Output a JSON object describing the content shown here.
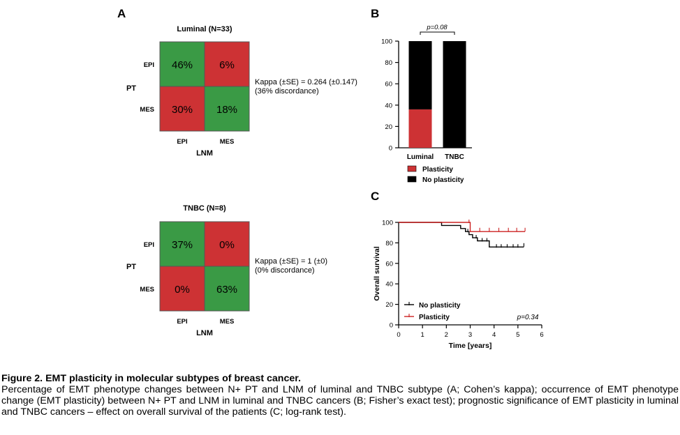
{
  "panel_a": {
    "label": "A",
    "luminal": {
      "title": "Luminal (N=33)",
      "cells": [
        {
          "text": "46%",
          "status": "concordant"
        },
        {
          "text": "6%",
          "status": "discordant"
        },
        {
          "text": "30%",
          "status": "discordant"
        },
        {
          "text": "18%",
          "status": "concordant"
        }
      ],
      "kappa_line1": "Kappa (±SE) = 0.264 (±0.147)",
      "kappa_line2": "(36% discordance)"
    },
    "tnbc": {
      "title": "TNBC (N=8)",
      "cells": [
        {
          "text": "37%",
          "status": "concordant"
        },
        {
          "text": "0%",
          "status": "discordant"
        },
        {
          "text": "0%",
          "status": "discordant"
        },
        {
          "text": "63%",
          "status": "concordant"
        }
      ],
      "kappa_line1": "Kappa (±SE) = 1 (±0)",
      "kappa_line2": "(0% discordance)"
    },
    "row_labels": [
      "EPI",
      "MES"
    ],
    "col_labels": [
      "EPI",
      "MES"
    ],
    "row_axis": "PT",
    "col_axis": "LNM"
  },
  "panel_b": {
    "label": "B",
    "p_value": "p=0.08"
  },
  "panel_c": {
    "label": "C",
    "p_value": "p=0.34"
  },
  "colors": {
    "concordant": "#3a9a45",
    "discordant": "#cd3234",
    "plasticity": "#cd3234",
    "no_plasticity": "#000000",
    "km_plasticity": "#cc2222",
    "km_no_plasticity": "#000000"
  },
  "caption": {
    "title": "Figure 2. EMT plasticity in molecular subtypes of breast cancer.",
    "body": "Percentage of EMT phenotype changes between N+ PT and LNM of luminal and TNBC subtype (A; Cohen’s kappa); occurrence of EMT phenotype change (EMT plasticity) between N+ PT and LNM in luminal and TNBC cancers (B; Fisher’s exact test); prognostic significance of EMT plasticity in luminal and TNBC cancers – effect on overall survival of the patients (C; log-rank test)."
  },
  "chart_data": [
    {
      "type": "heatmap",
      "title": "Luminal (N=33)",
      "rows": [
        "EPI",
        "MES"
      ],
      "columns": [
        "EPI",
        "MES"
      ],
      "values": [
        [
          46,
          6
        ],
        [
          30,
          18
        ]
      ],
      "unit": "%",
      "ylabel": "PT",
      "xlabel": "LNM"
    },
    {
      "type": "heatmap",
      "title": "TNBC (N=8)",
      "rows": [
        "EPI",
        "MES"
      ],
      "columns": [
        "EPI",
        "MES"
      ],
      "values": [
        [
          37,
          0
        ],
        [
          0,
          63
        ]
      ],
      "unit": "%",
      "ylabel": "PT",
      "xlabel": "LNM"
    },
    {
      "type": "bar",
      "stacked": true,
      "categories": [
        "Luminal",
        "TNBC"
      ],
      "series": [
        {
          "name": "Plasticity",
          "values": [
            36,
            0
          ]
        },
        {
          "name": "No plasticity",
          "values": [
            64,
            100
          ]
        }
      ],
      "ylim": [
        0,
        100
      ],
      "yticks": [
        0,
        20,
        40,
        60,
        80,
        100
      ],
      "annotation": "p=0.08",
      "legend_position": "bottom"
    },
    {
      "type": "line",
      "step": true,
      "xlabel": "Time [years]",
      "ylabel": "Overall survival",
      "xlim": [
        0,
        6
      ],
      "ylim": [
        0,
        100
      ],
      "xticks": [
        0,
        1,
        2,
        3,
        4,
        5,
        6
      ],
      "yticks": [
        0,
        20,
        40,
        60,
        80,
        100
      ],
      "legend_position": "bottom-left",
      "annotation": "p=0.34",
      "series": [
        {
          "name": "No plasticity",
          "x": [
            0,
            1.8,
            1.8,
            2.6,
            2.6,
            2.8,
            2.8,
            2.95,
            2.95,
            3.1,
            3.1,
            3.3,
            3.3,
            3.8,
            3.8,
            5.25
          ],
          "y": [
            100,
            100,
            97,
            97,
            94,
            94,
            91,
            91,
            88,
            88,
            85,
            85,
            82,
            82,
            76,
            76
          ],
          "censored": [
            [
              2.9,
              91
            ],
            [
              3.25,
              85
            ],
            [
              3.5,
              82
            ],
            [
              3.7,
              82
            ],
            [
              4.1,
              76
            ],
            [
              4.3,
              76
            ],
            [
              4.55,
              76
            ],
            [
              4.8,
              76
            ],
            [
              5.0,
              76
            ],
            [
              5.25,
              77
            ]
          ]
        },
        {
          "name": "Plasticity",
          "x": [
            0,
            3.0,
            3.0,
            5.3
          ],
          "y": [
            100,
            100,
            91,
            91
          ],
          "censored": [
            [
              2.95,
              100
            ],
            [
              3.4,
              92
            ],
            [
              3.8,
              92
            ],
            [
              4.2,
              92
            ],
            [
              4.6,
              92
            ],
            [
              4.95,
              92
            ],
            [
              5.3,
              92
            ]
          ]
        }
      ]
    }
  ]
}
